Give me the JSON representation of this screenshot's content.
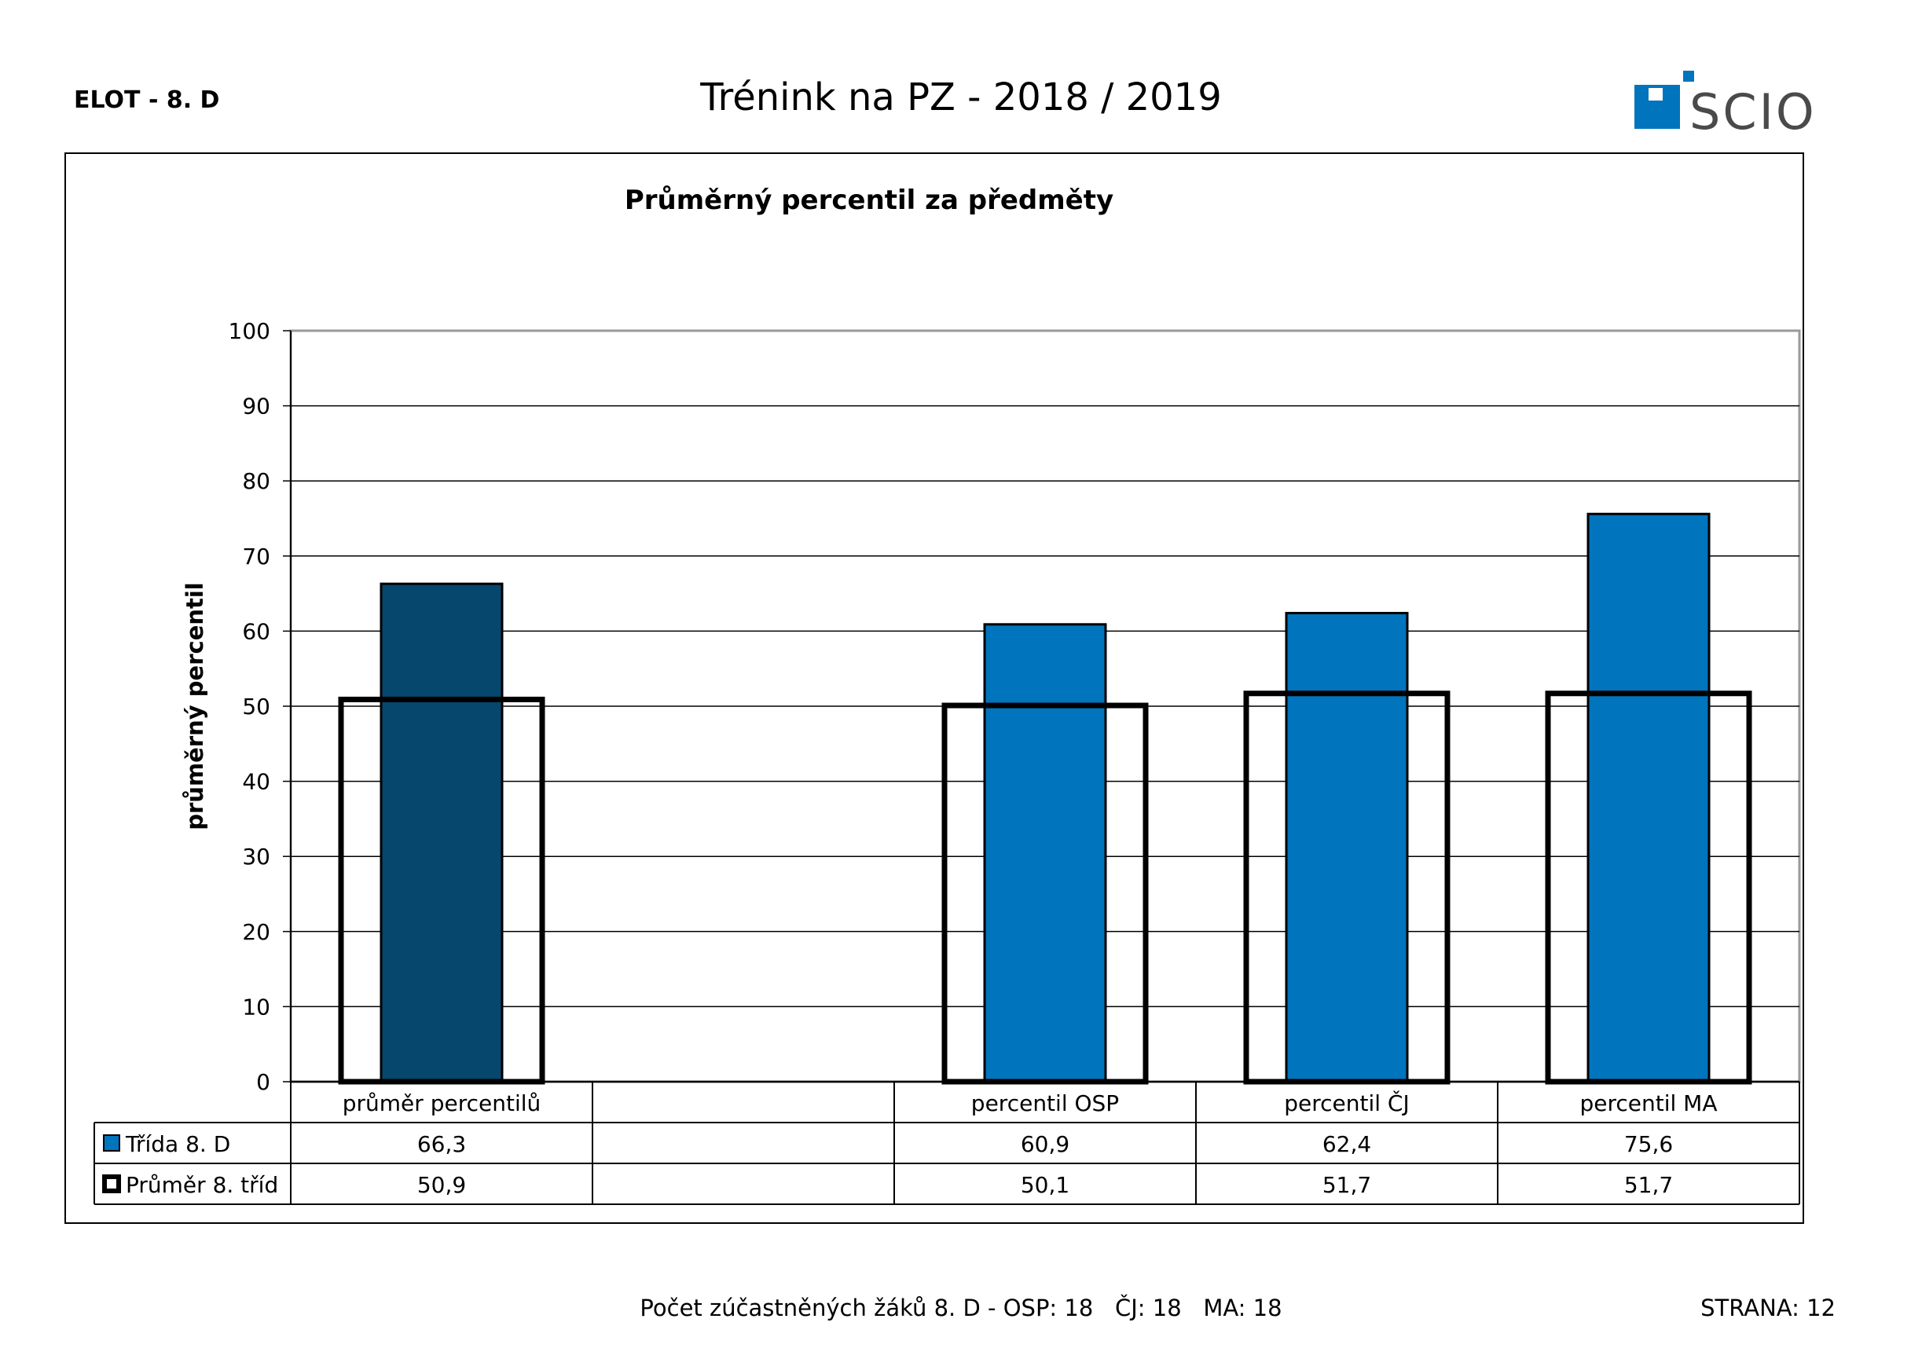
{
  "header": {
    "left_label": "ELOT - 8. D",
    "title": "Trénink na PZ - 2018 / 2019",
    "logo_text": "SCIO",
    "brand_color": "#0074bd"
  },
  "chart_data": {
    "type": "bar",
    "title": "Průměrný percentil za předměty",
    "xlabel": "",
    "ylabel": "průměrný percentil",
    "ylim": [
      0,
      100
    ],
    "yticks": [
      "0",
      "10",
      "20",
      "30",
      "40",
      "50",
      "60",
      "70",
      "80",
      "90",
      "100"
    ],
    "grid": true,
    "legend": "table-below",
    "categories": [
      "průměr percentilů",
      "",
      "percentil OSP",
      "percentil ČJ",
      "percentil MA"
    ],
    "series": [
      {
        "name": "Třída 8. D",
        "style": "filled",
        "color": "#0074bd",
        "first_color": "#05476d",
        "values": [
          66.3,
          null,
          60.9,
          62.4,
          75.6
        ],
        "labels": [
          "66,3",
          "",
          "60,9",
          "62,4",
          "75,6"
        ]
      },
      {
        "name": "Průměr 8. tříd",
        "style": "outline",
        "color": "#000000",
        "values": [
          50.9,
          null,
          50.1,
          51.7,
          51.7
        ],
        "labels": [
          "50,9",
          "",
          "50,1",
          "51,7",
          "51,7"
        ]
      }
    ]
  },
  "footer": {
    "participants": "Počet zúčastněných žáků 8. D - OSP: 18   ČJ: 18   MA: 18",
    "page": "STRANA: 12"
  }
}
